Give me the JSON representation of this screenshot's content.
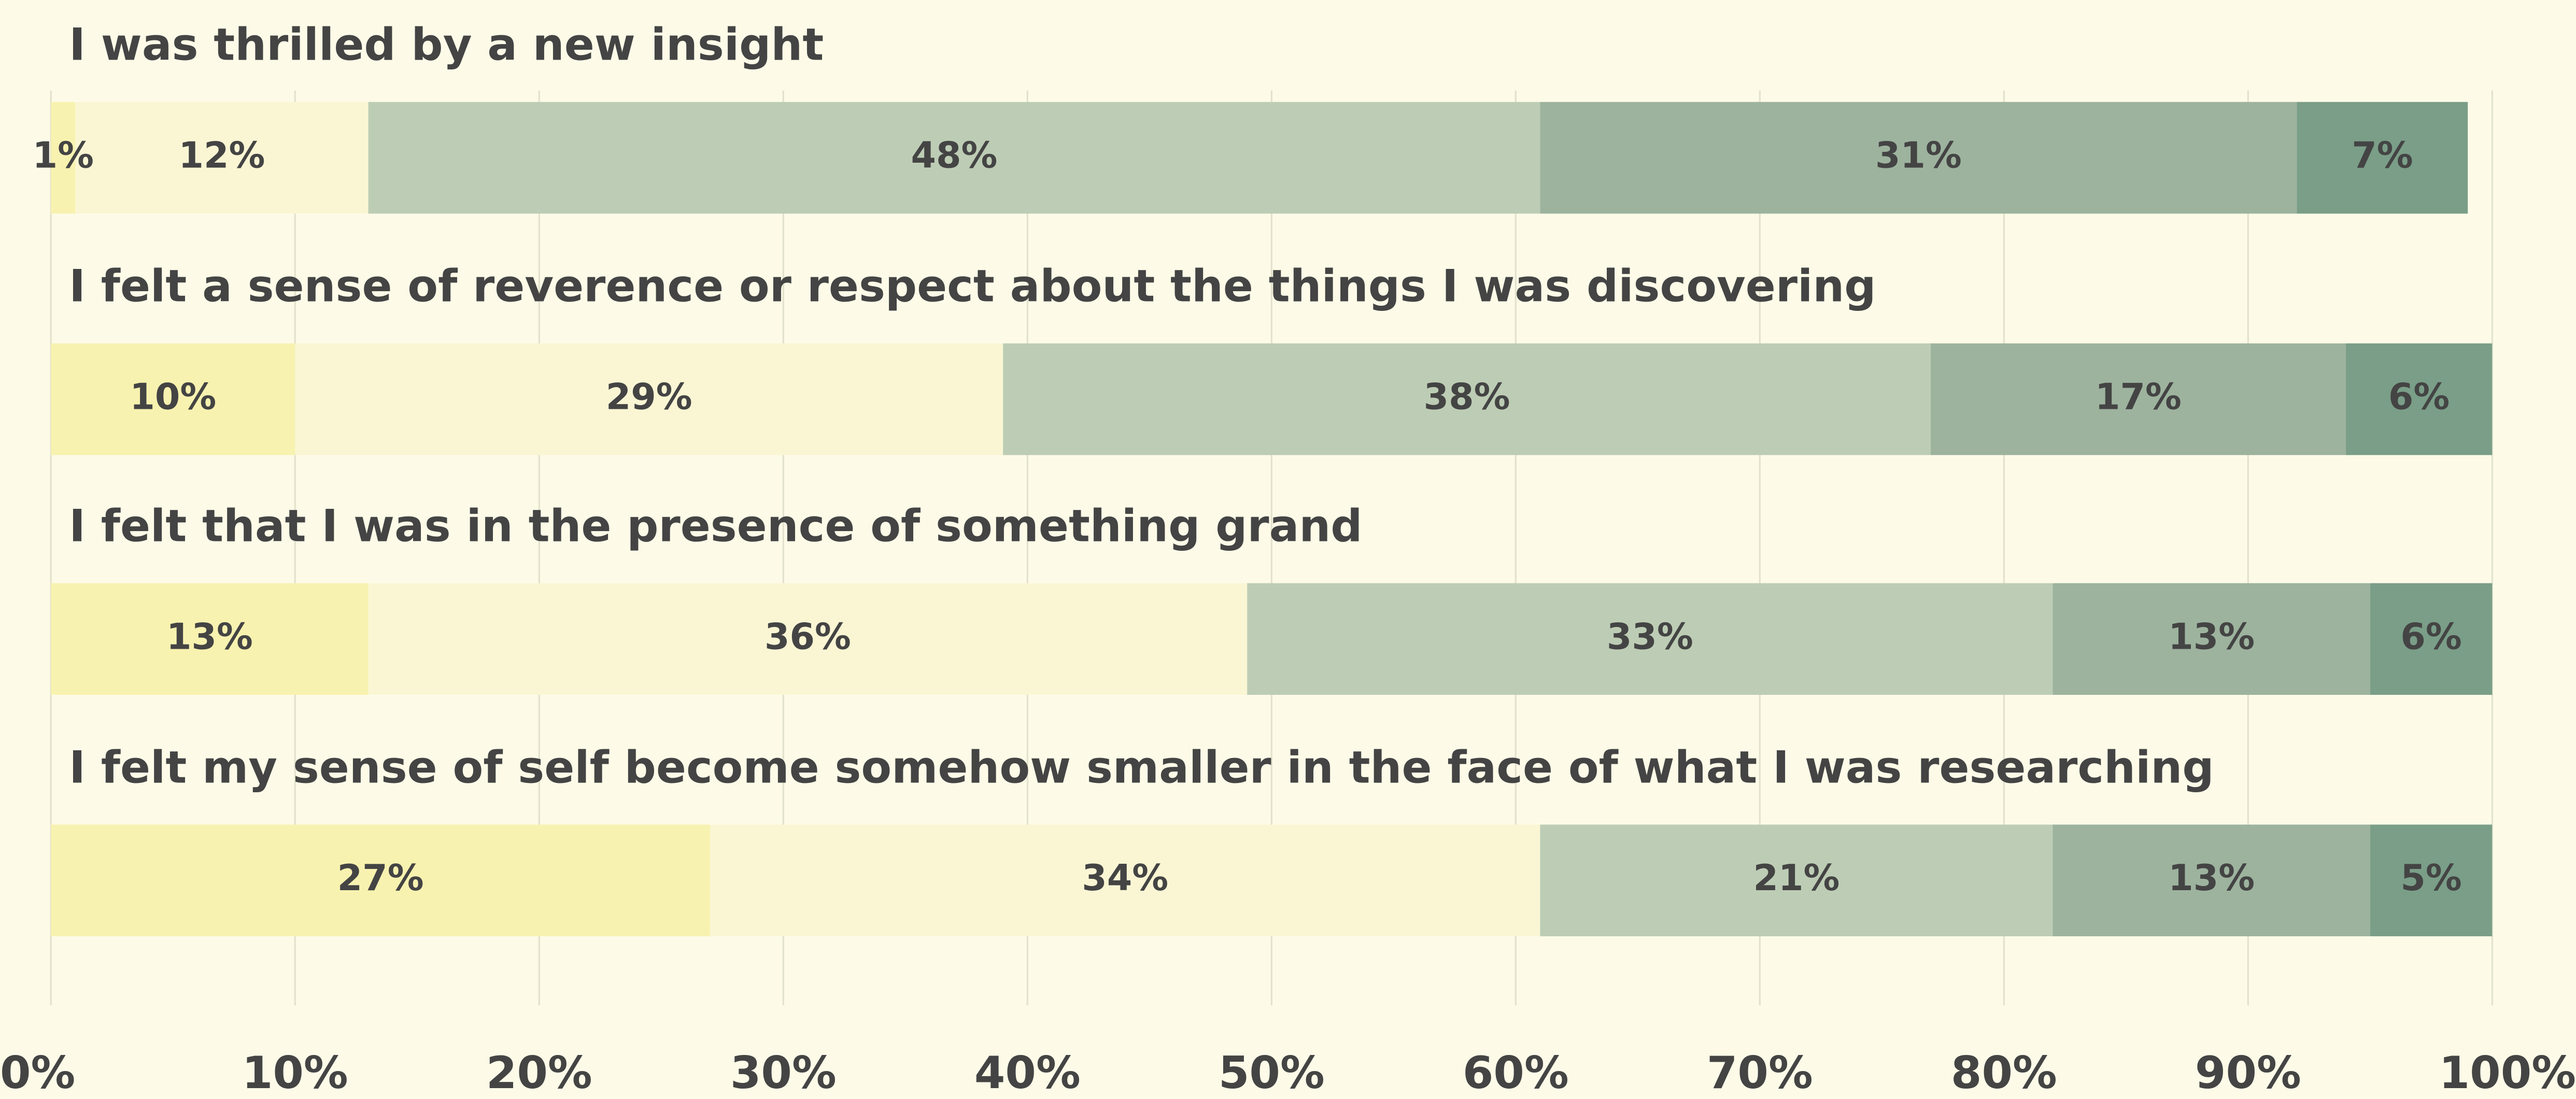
{
  "chart_data": {
    "type": "stacked_bar_horizontal",
    "categories": [
      "I was thrilled by a new insight",
      "I felt a sense of reverence or respect about the things I was discovering",
      "I felt that I was in the presence of something grand",
      "I felt my sense of self become somehow smaller in the face of what I was researching"
    ],
    "series": [
      {
        "color": "#f8f2b0",
        "values": [
          1,
          10,
          13,
          27
        ],
        "value_labels": [
          "1%",
          "10%",
          "13%",
          "27%"
        ]
      },
      {
        "color": "#faf6d4",
        "values": [
          12,
          29,
          36,
          34
        ],
        "value_labels": [
          "12%",
          "29%",
          "36%",
          "34%"
        ]
      },
      {
        "color": "#bdcdb5",
        "values": [
          48,
          38,
          33,
          21
        ],
        "value_labels": [
          "48%",
          "38%",
          "33%",
          "21%"
        ]
      },
      {
        "color": "#9db39e",
        "values": [
          31,
          17,
          13,
          13
        ],
        "value_labels": [
          "31%",
          "17%",
          "13%",
          "13%"
        ]
      },
      {
        "color": "#7a9e88",
        "values": [
          7,
          6,
          6,
          5
        ],
        "value_labels": [
          "7%",
          "6%",
          "6%",
          "5%"
        ]
      }
    ],
    "xlim": [
      0,
      100
    ],
    "xticks": [
      {
        "value": 0,
        "label": "0%"
      },
      {
        "value": 10,
        "label": "10%"
      },
      {
        "value": 20,
        "label": "20%"
      },
      {
        "value": 30,
        "label": "30%"
      },
      {
        "value": 40,
        "label": "40%"
      },
      {
        "value": 50,
        "label": "50%"
      },
      {
        "value": 60,
        "label": "60%"
      },
      {
        "value": 70,
        "label": "70%"
      },
      {
        "value": 80,
        "label": "80%"
      },
      {
        "value": 90,
        "label": "90%"
      },
      {
        "value": 100,
        "label": "100%"
      }
    ],
    "grid": true
  }
}
